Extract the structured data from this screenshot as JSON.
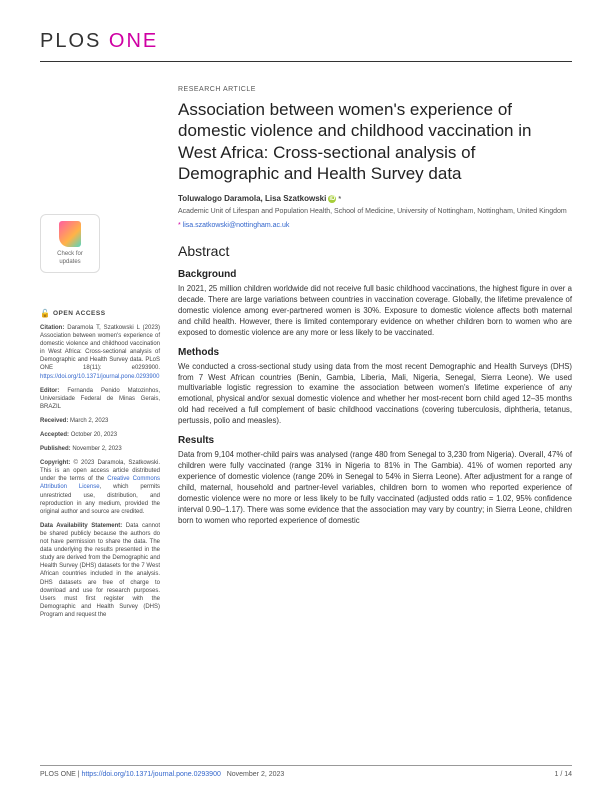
{
  "journal": {
    "part1": "PLOS",
    "part2": "ONE"
  },
  "article_type": "RESEARCH ARTICLE",
  "title": "Association between women's experience of domestic violence and childhood vaccination in West Africa: Cross-sectional analysis of Demographic and Health Survey data",
  "authors": "Toluwalogo Daramola, Lisa Szatkowski",
  "affiliation": "Academic Unit of Lifespan and Population Health, School of Medicine, University of Nottingham, Nottingham, United Kingdom",
  "correspondence": "lisa.szatkowski@nottingham.ac.uk",
  "abstract_heading": "Abstract",
  "sections": {
    "background": {
      "heading": "Background",
      "text": "In 2021, 25 million children worldwide did not receive full basic childhood vaccinations, the highest figure in over a decade. There are large variations between countries in vaccination coverage. Globally, the lifetime prevalence of domestic violence among ever-partnered women is 30%. Exposure to domestic violence affects both maternal and child health. However, there is limited contemporary evidence on whether children born to women who are exposed to domestic violence are any more or less likely to be vaccinated."
    },
    "methods": {
      "heading": "Methods",
      "text": "We conducted a cross-sectional study using data from the most recent Demographic and Health Surveys (DHS) from 7 West African countries (Benin, Gambia, Liberia, Mali, Nigeria, Senegal, Sierra Leone). We used multivariable logistic regression to examine the association between women's lifetime experience of any emotional, physical and/or sexual domestic violence and whether her most-recent born child aged 12–35 months old had received a full complement of basic childhood vaccinations (covering tuberculosis, diphtheria, tetanus, pertussis, polio and measles)."
    },
    "results": {
      "heading": "Results",
      "text": "Data from 9,104 mother-child pairs was analysed (range 480 from Senegal to 3,230 from Nigeria). Overall, 47% of children were fully vaccinated (range 31% in Nigeria to 81% in The Gambia). 41% of women reported any experience of domestic violence (range 20% in Senegal to 54% in Sierra Leone). After adjustment for a range of child, maternal, household and partner-level variables, children born to women who reported experience of domestic violence were no more or less likely to be fully vaccinated (adjusted odds ratio = 1.02, 95% confidence interval 0.90–1.17). There was some evidence that the association may vary by country; in Sierra Leone, children born to women who reported experience of domestic"
    }
  },
  "sidebar": {
    "badge": {
      "line1": "Check for",
      "line2": "updates"
    },
    "open_access": "OPEN ACCESS",
    "citation": {
      "label": "Citation:",
      "text": "Daramola T, Szatkowski L (2023) Association between women's experience of domestic violence and childhood vaccination in West Africa: Cross-sectional analysis of Demographic and Health Survey data. PLoS ONE 18(11): e0293900.",
      "link": "https://doi.org/10.1371/journal.pone.0293900"
    },
    "editor": {
      "label": "Editor:",
      "text": "Fernanda Penido Matozinhos, Universidade Federal de Minas Gerais, BRAZIL"
    },
    "received": {
      "label": "Received:",
      "text": "March 2, 2023"
    },
    "accepted": {
      "label": "Accepted:",
      "text": "October 20, 2023"
    },
    "published": {
      "label": "Published:",
      "text": "November 2, 2023"
    },
    "copyright": {
      "label": "Copyright:",
      "text": "© 2023 Daramola, Szatkowski. This is an open access article distributed under the terms of the",
      "link_text": "Creative Commons Attribution License",
      "text2": ", which permits unrestricted use, distribution, and reproduction in any medium, provided the original author and source are credited."
    },
    "data": {
      "label": "Data Availability Statement:",
      "text": "Data cannot be shared publicly because the authors do not have permission to share the data. The data underlying the results presented in the study are derived from the Demographic and Health Survey (DHS) datasets for the 7 West African countries included in the analysis. DHS datasets are free of charge to download and use for research purposes. Users must first register with the Demographic and Health Survey (DHS) Program and request the"
    }
  },
  "footer": {
    "left_journal": "PLOS ONE |",
    "doi": "https://doi.org/10.1371/journal.pone.0293900",
    "date": "November 2, 2023",
    "page": "1 / 14"
  },
  "colors": {
    "brand_pink": "#cf00a3",
    "link": "#3366cc",
    "orcid": "#a6ce39"
  }
}
